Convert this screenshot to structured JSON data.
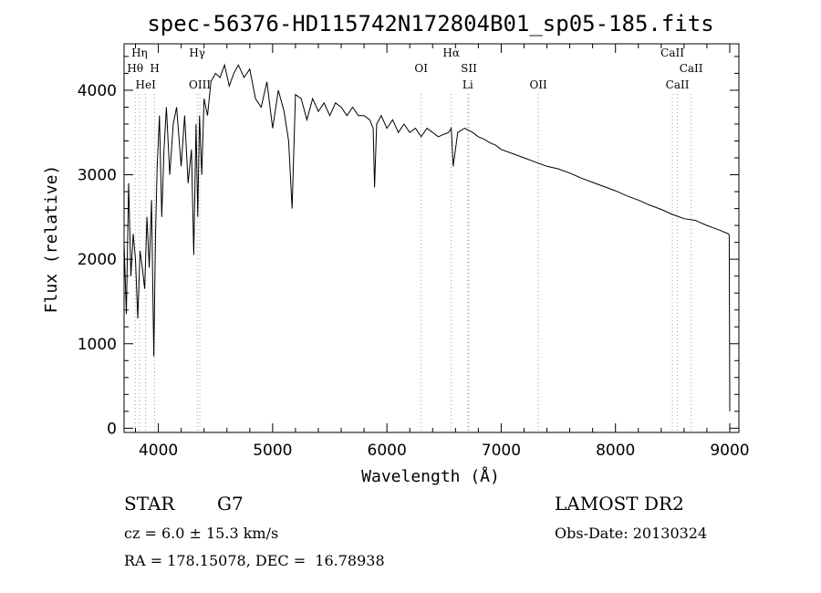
{
  "chart_data": {
    "type": "line",
    "title": "spec-56376-HD115742N172804B01_sp05-185.fits",
    "xlabel": "Wavelength (Å)",
    "ylabel": "Flux (relative)",
    "xlim": [
      3700,
      9080
    ],
    "ylim": [
      -50,
      4550
    ],
    "grid": false,
    "x_ticks": [
      4000,
      5000,
      6000,
      7000,
      8000,
      9000
    ],
    "y_ticks": [
      0,
      1000,
      2000,
      3000,
      4000
    ],
    "x_tick_labels": [
      "4000",
      "5000",
      "6000",
      "7000",
      "8000",
      "9000"
    ],
    "y_tick_labels": [
      "0",
      "1000",
      "2000",
      "3000",
      "4000"
    ],
    "series": [
      {
        "x": [
          3700,
          3720,
          3740,
          3760,
          3780,
          3800,
          3820,
          3840,
          3860,
          3880,
          3900,
          3920,
          3940,
          3960,
          3975,
          3990,
          4010,
          4030,
          4050,
          4070,
          4100,
          4130,
          4160,
          4200,
          4230,
          4260,
          4290,
          4310,
          4330,
          4345,
          4360,
          4380,
          4400,
          4430,
          4460,
          4500,
          4540,
          4580,
          4620,
          4660,
          4700,
          4750,
          4800,
          4850,
          4900,
          4950,
          5000,
          5050,
          5100,
          5140,
          5170,
          5200,
          5250,
          5300,
          5350,
          5400,
          5450,
          5500,
          5550,
          5600,
          5650,
          5700,
          5750,
          5800,
          5850,
          5880,
          5892,
          5910,
          5950,
          6000,
          6050,
          6100,
          6150,
          6200,
          6250,
          6300,
          6350,
          6400,
          6450,
          6500,
          6540,
          6563,
          6580,
          6620,
          6680,
          6750,
          6800,
          6850,
          6900,
          6950,
          7000,
          7100,
          7200,
          7300,
          7400,
          7500,
          7600,
          7700,
          7800,
          7900,
          8000,
          8100,
          8200,
          8300,
          8400,
          8500,
          8600,
          8700,
          8800,
          8900,
          8990,
          8995,
          9000
        ],
        "y": [
          2200,
          1350,
          2900,
          1800,
          2300,
          2000,
          1300,
          2100,
          1900,
          1650,
          2500,
          1900,
          2700,
          850,
          2300,
          3100,
          3700,
          2500,
          3300,
          3800,
          3000,
          3600,
          3800,
          3100,
          3700,
          2900,
          3300,
          2050,
          3600,
          2500,
          3700,
          3000,
          3900,
          3700,
          4100,
          4200,
          4150,
          4300,
          4050,
          4200,
          4300,
          4150,
          4250,
          3900,
          3800,
          4100,
          3550,
          4000,
          3750,
          3400,
          2600,
          3950,
          3900,
          3650,
          3900,
          3750,
          3850,
          3700,
          3850,
          3800,
          3700,
          3800,
          3700,
          3700,
          3650,
          3550,
          2850,
          3600,
          3700,
          3550,
          3650,
          3500,
          3600,
          3500,
          3550,
          3450,
          3550,
          3500,
          3450,
          3480,
          3500,
          3550,
          3100,
          3500,
          3550,
          3500,
          3450,
          3420,
          3380,
          3350,
          3300,
          3250,
          3200,
          3150,
          3100,
          3070,
          3020,
          2960,
          2910,
          2860,
          2810,
          2750,
          2700,
          2640,
          2590,
          2530,
          2480,
          2460,
          2400,
          2350,
          2300,
          2280,
          200
        ]
      }
    ],
    "line_annotations": [
      {
        "label": "Hη",
        "x": 3835,
        "color": "#a0a0a0",
        "row": 1
      },
      {
        "label": "Hθ",
        "x": 3798,
        "color": "#a0a0a0",
        "row": 2
      },
      {
        "label": "H",
        "x": 3968,
        "color": "#a0a0a0",
        "row": 2
      },
      {
        "label": "HeI",
        "x": 3889,
        "color": "#a0a0a0",
        "row": 3
      },
      {
        "label": "Hγ",
        "x": 4340,
        "color": "#a0a0a0",
        "row": 1
      },
      {
        "label": "OIII",
        "x": 4363,
        "color": "#e08080",
        "row": 3
      },
      {
        "label": "OI",
        "x": 6300,
        "color": "#a0a0a0",
        "row": 2
      },
      {
        "label": "Hα",
        "x": 6563,
        "color": "#e08080",
        "row": 1
      },
      {
        "label": "SII",
        "x": 6717,
        "color": "#e08080",
        "row": 2
      },
      {
        "label": "Li",
        "x": 6708,
        "color": "#a0a0a0",
        "row": 3
      },
      {
        "label": "OII",
        "x": 7325,
        "color": "#e08080",
        "row": 3
      },
      {
        "label": "CaII",
        "x": 8498,
        "color": "#a0a0a0",
        "row": 1
      },
      {
        "label": "CaII",
        "x": 8662,
        "color": "#a0a0a0",
        "row": 2
      },
      {
        "label": "CaII",
        "x": 8542,
        "color": "#a0a0a0",
        "row": 3
      }
    ]
  },
  "footer": {
    "object_class": "STAR",
    "subclass": "G7",
    "redshift": "cz = 6.0 ± 15.3 km/s",
    "coordinates": "RA = 178.15078, DEC =  16.78938",
    "survey": "LAMOST DR2",
    "obs_date": "Obs-Date: 20130324"
  }
}
